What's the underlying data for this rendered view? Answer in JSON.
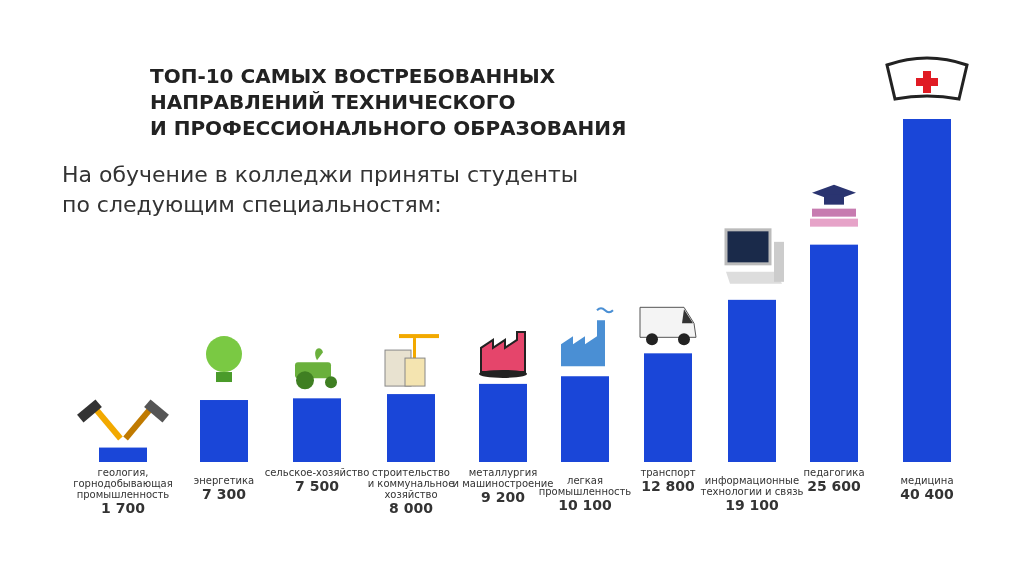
{
  "chart_data": {
    "type": "bar",
    "title": "ТОП-10 САМЫХ ВОСТРЕБОВАННЫХ\nНАПРАВЛЕНИЙ ТЕХНИЧЕСКОГО\nИ ПРОФЕССИОНАЛЬНОГО ОБРАЗОВАНИЯ",
    "subtitle": "На обучение в колледжи приняты студенты\nпо следующим специальностям:",
    "categories": [
      "геология,\nгорнодобывающая\nпромышленность",
      "энергетика",
      "сельское-хозяйство",
      "строительство\nи коммунальное\nхозяйство",
      "металлургия\nи машиностроение",
      "легкая\nпромышленность",
      "транспорт",
      "информационные\nтехнологии и связь",
      "педагогика",
      "медицина"
    ],
    "values": [
      1700,
      7300,
      7500,
      8000,
      9200,
      10100,
      12800,
      19100,
      25600,
      40400
    ],
    "value_labels": [
      "1 700",
      "7 300",
      "7 500",
      "8 000",
      "9 200",
      "10 100",
      "12 800",
      "19 100",
      "25 600",
      "40 400"
    ],
    "color": "#1a46d8"
  }
}
